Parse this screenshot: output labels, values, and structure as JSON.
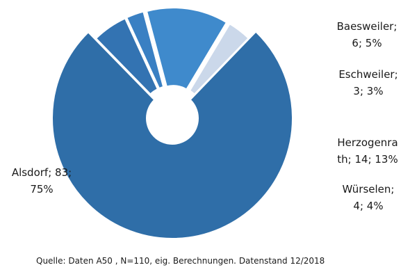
{
  "chart_data": {
    "type": "pie",
    "donut": true,
    "slices": [
      {
        "name": "Alsdorf",
        "value": 83,
        "percent": 75,
        "label_lines": [
          "Alsdorf; 83;",
          "75%"
        ],
        "color": "#2f6ea8",
        "exploded": false
      },
      {
        "name": "Baesweiler",
        "value": 6,
        "percent": 5,
        "label_lines": [
          "Baesweiler;",
          "6; 5%"
        ],
        "color": "#3373b2",
        "exploded": true
      },
      {
        "name": "Eschweiler",
        "value": 3,
        "percent": 3,
        "label_lines": [
          "Eschweiler;",
          "3; 3%"
        ],
        "color": "#3a80c3",
        "exploded": true
      },
      {
        "name": "Herzogenrath",
        "value": 14,
        "percent": 13,
        "label_lines": [
          "Herzogenra",
          "th; 14; 13%"
        ],
        "color": "#3f8acc",
        "exploded": true
      },
      {
        "name": "Würselen",
        "value": 4,
        "percent": 4,
        "label_lines": [
          "Würselen;",
          "4; 4%"
        ],
        "color": "#cbd8ea",
        "exploded": true
      }
    ],
    "total": 110
  },
  "source_note": "Quelle: Daten A50 , N=110, eig. Berechnungen. Datenstand 12/2018"
}
